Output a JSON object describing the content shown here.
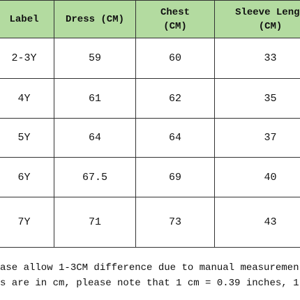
{
  "table": {
    "header": [
      "Label",
      "Dress (CM)",
      "Chest\n(CM)",
      "Sleeve Lengt\n(CM)"
    ],
    "rows": [
      [
        "2-3Y",
        "59",
        "60",
        "33"
      ],
      [
        "4Y",
        "61",
        "62",
        "35"
      ],
      [
        "5Y",
        "64",
        "64",
        "37"
      ],
      [
        "6Y",
        "67.5",
        "69",
        "40"
      ],
      [
        "7Y",
        "71",
        "73",
        "43"
      ]
    ]
  },
  "notes": [
    "ase allow 1-3CM difference due to manual measuremen",
    "s are in cm, please note that 1 cm = 0.39 inches, 1"
  ]
}
